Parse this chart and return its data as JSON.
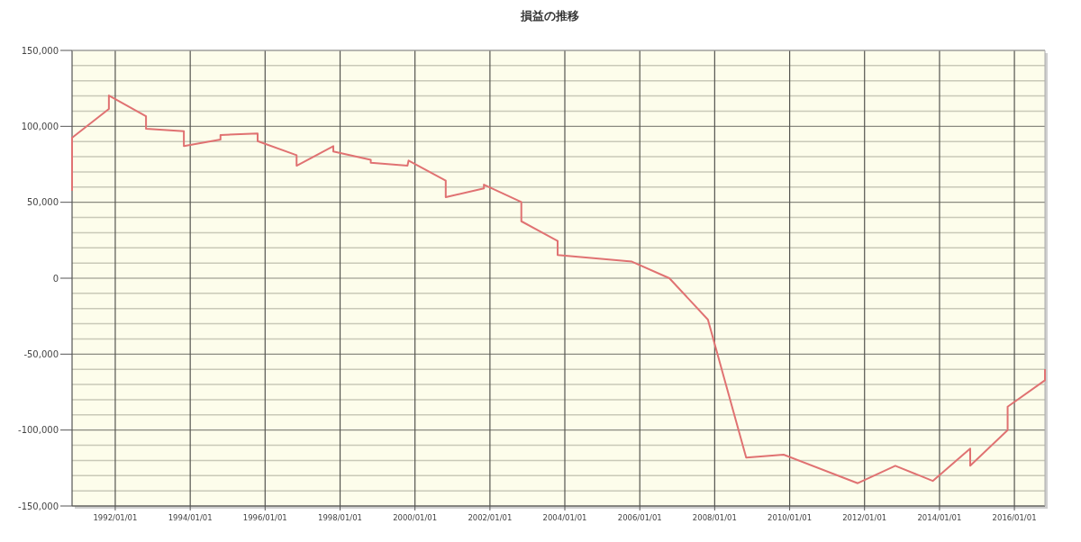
{
  "chart_data": {
    "type": "line",
    "title": "損益の推移",
    "x": [
      "1990-11-06",
      "1990-11-06",
      "1991-10-31",
      "1991-10-31",
      "1992-10-27",
      "1992-10-27",
      "1993-10-31",
      "1993-10-31",
      "1994-10-23",
      "1994-10-23",
      "1995-10-20",
      "1995-10-20",
      "1996-11-03",
      "1996-11-03",
      "1997-10-27",
      "1997-10-27",
      "1998-10-27",
      "1998-10-27",
      "1999-10-20",
      "1999-10-31",
      "2000-10-27",
      "2000-10-27",
      "2001-11-03",
      "2001-11-03",
      "2002-11-03",
      "2002-11-03",
      "2003-10-23",
      "2003-10-23",
      "2005-10-16",
      "2006-10-16",
      "2007-10-27",
      "2008-11-03",
      "2009-11-03",
      "2011-10-27",
      "2012-10-27",
      "2013-10-27",
      "2014-10-27",
      "2014-10-27",
      "2015-10-27",
      "2015-10-27",
      "2016-10-25",
      "2016-10-25"
    ],
    "series": [
      {
        "color": "#e07272",
        "values": [
          57500,
          92500,
          111500,
          120300,
          106700,
          98400,
          96800,
          87000,
          91300,
          94300,
          95300,
          90300,
          81000,
          74100,
          87000,
          83400,
          78000,
          76000,
          74100,
          77500,
          64200,
          53400,
          59100,
          61600,
          50200,
          37500,
          24500,
          15200,
          10900,
          0,
          -27300,
          -118100,
          -116200,
          -135000,
          -123500,
          -133500,
          -112200,
          -123500,
          -100000,
          -84600,
          -67200,
          -59900
        ]
      }
    ],
    "xlim": [
      "1990-11-06",
      "2016-10-25"
    ],
    "xticks": [
      {
        "value": "1992-01-01",
        "label": "1992/01/01"
      },
      {
        "value": "1994-01-01",
        "label": "1994/01/01"
      },
      {
        "value": "1996-01-01",
        "label": "1996/01/01"
      },
      {
        "value": "1998-01-01",
        "label": "1998/01/01"
      },
      {
        "value": "2000-01-01",
        "label": "2000/01/01"
      },
      {
        "value": "2002-01-01",
        "label": "2002/01/01"
      },
      {
        "value": "2004-01-01",
        "label": "2004/01/01"
      },
      {
        "value": "2006-01-01",
        "label": "2006/01/01"
      },
      {
        "value": "2008-01-01",
        "label": "2008/01/01"
      },
      {
        "value": "2010-01-01",
        "label": "2010/01/01"
      },
      {
        "value": "2012-01-01",
        "label": "2012/01/01"
      },
      {
        "value": "2014-01-01",
        "label": "2014/01/01"
      },
      {
        "value": "2016-01-01",
        "label": "2016/01/01"
      }
    ],
    "ylim": [
      -150000,
      150000
    ],
    "yticks": [
      {
        "value": -150000,
        "label": "-150,000"
      },
      {
        "value": -140000,
        "label": null
      },
      {
        "value": -130000,
        "label": null
      },
      {
        "value": -120000,
        "label": null
      },
      {
        "value": -110000,
        "label": null
      },
      {
        "value": -100000,
        "label": "-100,000"
      },
      {
        "value": -90000,
        "label": null
      },
      {
        "value": -80000,
        "label": null
      },
      {
        "value": -70000,
        "label": null
      },
      {
        "value": -60000,
        "label": null
      },
      {
        "value": -50000,
        "label": "-50,000"
      },
      {
        "value": -40000,
        "label": null
      },
      {
        "value": -30000,
        "label": null
      },
      {
        "value": -20000,
        "label": null
      },
      {
        "value": -10000,
        "label": null
      },
      {
        "value": 0,
        "label": "0"
      },
      {
        "value": 10000,
        "label": null
      },
      {
        "value": 20000,
        "label": null
      },
      {
        "value": 30000,
        "label": null
      },
      {
        "value": 40000,
        "label": null
      },
      {
        "value": 50000,
        "label": "50,000"
      },
      {
        "value": 60000,
        "label": null
      },
      {
        "value": 70000,
        "label": null
      },
      {
        "value": 80000,
        "label": null
      },
      {
        "value": 90000,
        "label": null
      },
      {
        "value": 100000,
        "label": "100,000"
      },
      {
        "value": 110000,
        "label": null
      },
      {
        "value": 120000,
        "label": null
      },
      {
        "value": 130000,
        "label": null
      },
      {
        "value": 140000,
        "label": null
      },
      {
        "value": 150000,
        "label": "150,000"
      }
    ],
    "grid": true,
    "marker": "none",
    "line_style": "solid"
  }
}
